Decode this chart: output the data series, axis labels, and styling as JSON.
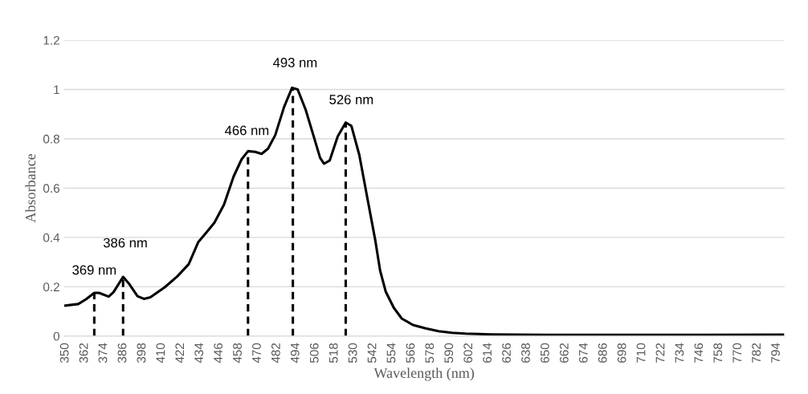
{
  "chart_data": {
    "type": "line",
    "xlabel": "Wavelength (nm)",
    "ylabel": "Absorbance",
    "series": [
      {
        "color": "#000000",
        "x": [
          350,
          358,
          363,
          368,
          371,
          377,
          380,
          386,
          390,
          395,
          399,
          403,
          412,
          420,
          427,
          433,
          438,
          443,
          449,
          455,
          460,
          464,
          468.5,
          472.5,
          476.5,
          481,
          486.5,
          491.5,
          495,
          500,
          505,
          509,
          511.5,
          515,
          520,
          525,
          528.5,
          533.5,
          538.5,
          543.5,
          546.5,
          550,
          555,
          560,
          567,
          575,
          583,
          591.5,
          600,
          616.5,
          650,
          700,
          750,
          798
        ],
        "values": [
          0.124,
          0.13,
          0.15,
          0.175,
          0.175,
          0.16,
          0.178,
          0.24,
          0.21,
          0.162,
          0.151,
          0.157,
          0.198,
          0.243,
          0.292,
          0.382,
          0.42,
          0.46,
          0.533,
          0.647,
          0.717,
          0.75,
          0.747,
          0.739,
          0.76,
          0.815,
          0.929,
          1.007,
          1.0,
          0.918,
          0.81,
          0.723,
          0.699,
          0.712,
          0.81,
          0.866,
          0.853,
          0.734,
          0.56,
          0.387,
          0.265,
          0.18,
          0.115,
          0.071,
          0.045,
          0.031,
          0.02,
          0.013,
          0.01,
          0.007,
          0.005,
          0.005,
          0.005,
          0.006
        ]
      },
      {
        "color": "#000000",
        "line_style": "dashed",
        "x": [
          368,
          368
        ],
        "values": [
          0,
          0.175
        ]
      },
      {
        "color": "#000000",
        "line_style": "dashed",
        "x": [
          386,
          386
        ],
        "values": [
          0,
          0.24
        ]
      },
      {
        "color": "#000000",
        "line_style": "dashed",
        "x": [
          464,
          464
        ],
        "values": [
          0,
          0.75
        ]
      },
      {
        "color": "#000000",
        "line_style": "dashed",
        "x": [
          492,
          492
        ],
        "values": [
          0,
          1.007
        ]
      },
      {
        "color": "#000000",
        "line_style": "dashed",
        "x": [
          525,
          525
        ],
        "values": [
          0,
          0.866
        ]
      }
    ],
    "annotations": [
      {
        "text": "369 nm",
        "x": 368,
        "y": 0.175
      },
      {
        "text": "386 nm",
        "x": 386,
        "y": 0.24
      },
      {
        "text": "466 nm",
        "x": 464,
        "y": 0.75
      },
      {
        "text": "493 nm",
        "x": 492,
        "y": 1.007
      },
      {
        "text": "526 nm",
        "x": 525,
        "y": 0.866
      }
    ],
    "xlim": [
      349,
      799
    ],
    "xticks": [
      350,
      362,
      374,
      386,
      398,
      410,
      422,
      434,
      446,
      458,
      470,
      482,
      494,
      506,
      518,
      530,
      542,
      554,
      566,
      578,
      590,
      602,
      614,
      626,
      638,
      650,
      662,
      674,
      686,
      698,
      710,
      722,
      734,
      746,
      758,
      770,
      782,
      794
    ],
    "ylim": [
      0,
      1.2
    ],
    "yticks": [
      0,
      0.2,
      0.4,
      0.6,
      0.8,
      1,
      1.2
    ],
    "grid": "y",
    "marker": "none",
    "line_style": "solid"
  }
}
